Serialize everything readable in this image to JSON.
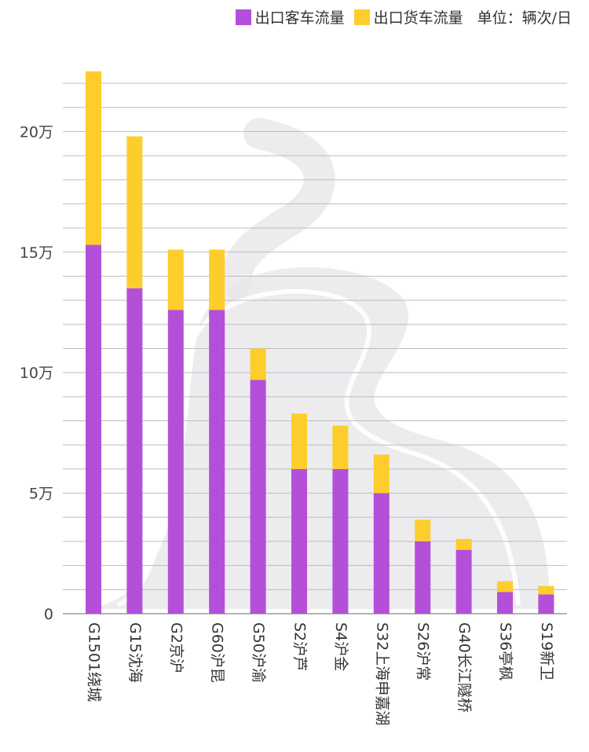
{
  "chart_data": {
    "type": "bar",
    "stacked": true,
    "unit_label": "单位：辆次/日",
    "categories": [
      "G1501绕城",
      "G15沈海",
      "G2京沪",
      "G60沪昆",
      "G50沪渝",
      "S2沪芦",
      "S4沪金",
      "S32上海申嘉湖",
      "S26沪常",
      "G40长江隧桥",
      "S36亭枫",
      "S19新卫"
    ],
    "series": [
      {
        "name": "出口客车流量",
        "color": "#b44fd9",
        "values": [
          153000,
          135000,
          126000,
          126000,
          97000,
          60000,
          60000,
          50000,
          30000,
          26500,
          9000,
          8000
        ]
      },
      {
        "name": "出口货车流量",
        "color": "#fdcd2b",
        "values": [
          72000,
          63000,
          25000,
          25000,
          13000,
          23000,
          18000,
          16000,
          9000,
          4500,
          4500,
          3500
        ]
      }
    ],
    "yticks": [
      {
        "value": 0,
        "label": "0"
      },
      {
        "value": 50000,
        "label": "5万"
      },
      {
        "value": 100000,
        "label": "10万"
      },
      {
        "value": 150000,
        "label": "15万"
      },
      {
        "value": 200000,
        "label": "20万"
      }
    ],
    "ylim": [
      0,
      235000
    ],
    "grid": true,
    "legend_position": "top-right"
  }
}
